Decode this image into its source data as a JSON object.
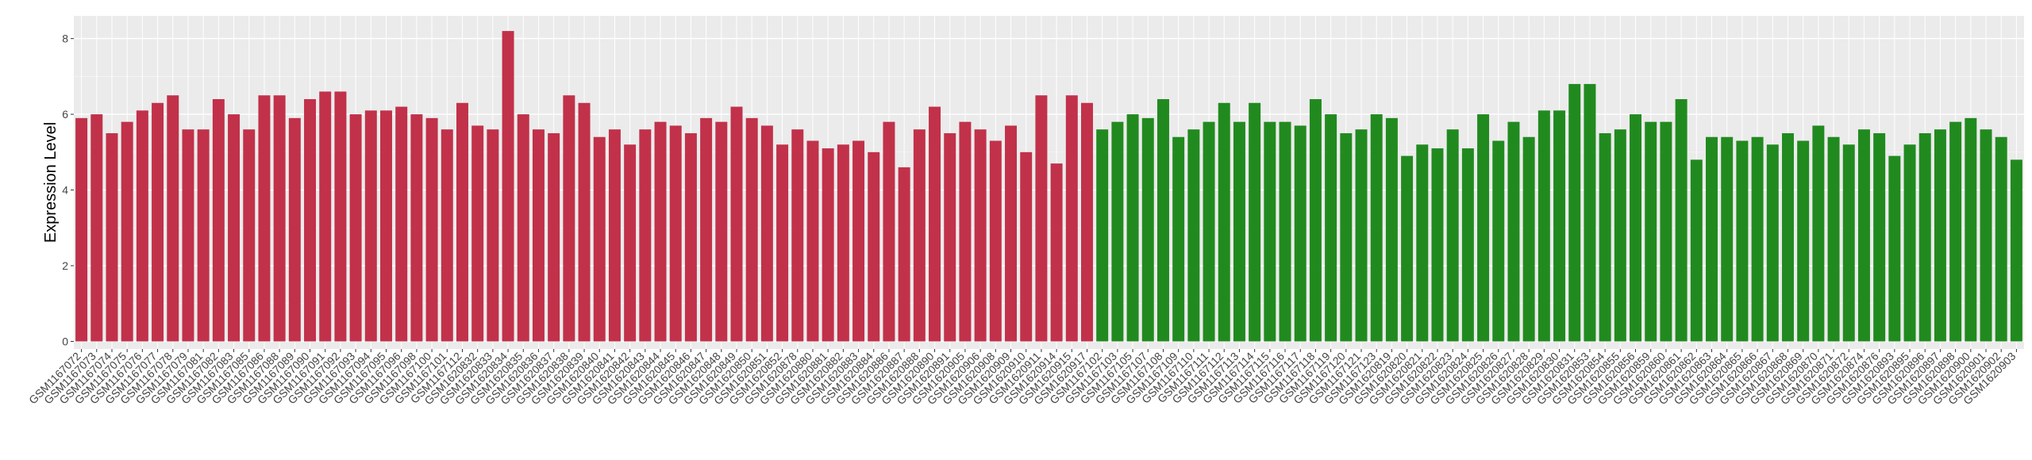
{
  "chart_data": {
    "type": "bar",
    "title": "",
    "xlabel": "",
    "ylabel": "Expression Level",
    "ylim": [
      -0.2,
      8.6
    ],
    "yticks": [
      0,
      2,
      4,
      6,
      8
    ],
    "grid": true,
    "legend": "none",
    "panel_background": "#ebebeb",
    "categories": [
      "GSM1167072",
      "GSM1167073",
      "GSM1167074",
      "GSM1167075",
      "GSM1167076",
      "GSM1167077",
      "GSM1167078",
      "GSM1167079",
      "GSM1167081",
      "GSM1167082",
      "GSM1167083",
      "GSM1167085",
      "GSM1167086",
      "GSM1167088",
      "GSM1167089",
      "GSM1167090",
      "GSM1167091",
      "GSM1167092",
      "GSM1167093",
      "GSM1167094",
      "GSM1167095",
      "GSM1167096",
      "GSM1167098",
      "GSM1167100",
      "GSM1167101",
      "GSM1167112",
      "GSM1620832",
      "GSM1620833",
      "GSM1620834",
      "GSM1620835",
      "GSM1620836",
      "GSM1620837",
      "GSM1620838",
      "GSM1620839",
      "GSM1620840",
      "GSM1620841",
      "GSM1620842",
      "GSM1620843",
      "GSM1620844",
      "GSM1620845",
      "GSM1620846",
      "GSM1620847",
      "GSM1620848",
      "GSM1620849",
      "GSM1620850",
      "GSM1620851",
      "GSM1620852",
      "GSM1620878",
      "GSM1620880",
      "GSM1620881",
      "GSM1620882",
      "GSM1620883",
      "GSM1620884",
      "GSM1620886",
      "GSM1620887",
      "GSM1620888",
      "GSM1620890",
      "GSM1620891",
      "GSM1620905",
      "GSM1620906",
      "GSM1620908",
      "GSM1620909",
      "GSM1620910",
      "GSM1620911",
      "GSM1620914",
      "GSM1620915",
      "GSM1620917",
      "GSM1167102",
      "GSM1167103",
      "GSM1167105",
      "GSM1167107",
      "GSM1167108",
      "GSM1167109",
      "GSM1167110",
      "GSM1167111",
      "GSM1167112",
      "GSM1167113",
      "GSM1167114",
      "GSM1167115",
      "GSM1167116",
      "GSM1167117",
      "GSM1167118",
      "GSM1167119",
      "GSM1167120",
      "GSM1167121",
      "GSM1167123",
      "GSM1620819",
      "GSM1620820",
      "GSM1620821",
      "GSM1620822",
      "GSM1620823",
      "GSM1620824",
      "GSM1620825",
      "GSM1620826",
      "GSM1620827",
      "GSM1620828",
      "GSM1620829",
      "GSM1620830",
      "GSM1620831",
      "GSM1620853",
      "GSM1620854",
      "GSM1620855",
      "GSM1620856",
      "GSM1620859",
      "GSM1620860",
      "GSM1620861",
      "GSM1620862",
      "GSM1620863",
      "GSM1620864",
      "GSM1620865",
      "GSM1620866",
      "GSM1620867",
      "GSM1620868",
      "GSM1620869",
      "GSM1620870",
      "GSM1620871",
      "GSM1620872",
      "GSM1620874",
      "GSM1620876",
      "GSM1620893",
      "GSM1620895",
      "GSM1620896",
      "GSM1620897",
      "GSM1620898",
      "GSM1620900",
      "GSM1620901",
      "GSM1620902",
      "GSM1620903"
    ],
    "values": [
      5.9,
      6.0,
      5.5,
      5.8,
      6.1,
      6.3,
      6.5,
      5.6,
      5.6,
      6.4,
      6.0,
      5.6,
      6.5,
      6.5,
      5.9,
      6.4,
      6.6,
      6.6,
      6.0,
      6.1,
      6.1,
      6.2,
      6.0,
      5.9,
      5.6,
      6.3,
      5.7,
      5.6,
      8.2,
      6.0,
      5.6,
      5.5,
      6.5,
      6.3,
      5.4,
      5.6,
      5.2,
      5.6,
      5.8,
      5.7,
      5.5,
      5.9,
      5.8,
      6.2,
      5.9,
      5.7,
      5.2,
      5.6,
      5.3,
      5.1,
      5.2,
      5.3,
      5.0,
      5.8,
      4.6,
      5.6,
      6.2,
      5.5,
      5.8,
      5.6,
      5.3,
      5.7,
      5.0,
      6.5,
      4.7,
      6.5,
      6.3,
      5.6,
      5.8,
      6.0,
      5.9,
      6.4,
      5.4,
      5.6,
      5.8,
      6.3,
      5.8,
      6.3,
      5.8,
      5.8,
      5.7,
      6.4,
      6.0,
      5.5,
      5.6,
      6.0,
      5.9,
      4.9,
      5.2,
      5.1,
      5.6,
      5.1,
      6.0,
      5.3,
      5.8,
      5.4,
      6.1,
      6.1,
      6.8,
      6.8,
      5.5,
      5.6,
      6.0,
      5.8,
      5.8,
      6.4,
      4.8,
      5.4,
      5.4,
      5.3,
      5.4,
      5.2,
      5.5,
      5.3,
      5.7,
      5.4,
      5.2,
      5.6,
      5.5,
      4.9,
      5.2,
      5.5,
      5.6,
      5.8,
      5.9,
      5.6,
      5.4,
      4.8
    ],
    "groups": [
      {
        "color": "#c1314a",
        "count": 67
      },
      {
        "color": "#218a1f",
        "count": 61
      }
    ]
  }
}
